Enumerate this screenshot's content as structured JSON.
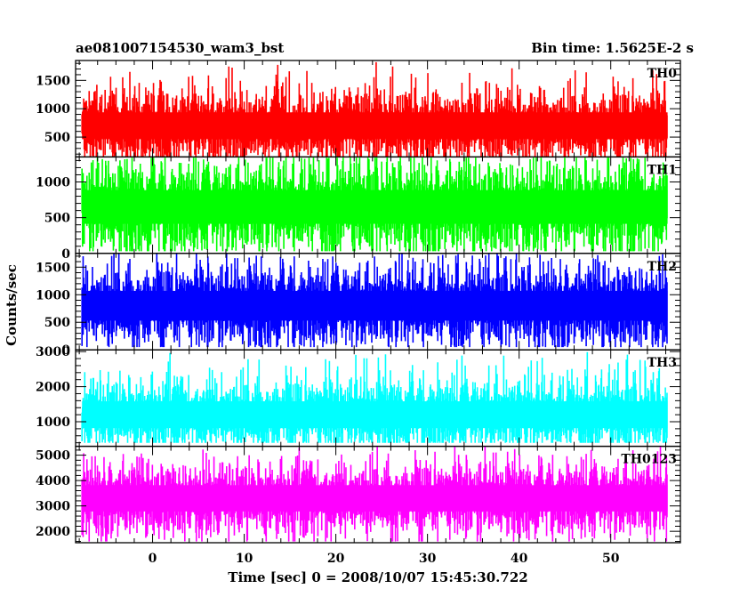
{
  "chart_data": {
    "type": "line",
    "title": "ae081007154530_wam3_bst",
    "subtitle": "Bin time: 1.5625E-2 s",
    "xlabel": "Time [sec] 0 = 2008/10/07 15:45:30.722",
    "ylabel": "Counts/sec",
    "xlim": [
      -8.4,
      57.6
    ],
    "x_ticks": [
      0,
      10,
      20,
      30,
      40,
      50
    ],
    "x_range": [
      -7.7,
      56.2
    ],
    "grid": false,
    "legend": "none",
    "panels": [
      {
        "name": "TH0",
        "color": "#ff0000",
        "ylim": [
          150,
          1850
        ],
        "y_ticks": [
          500,
          1000,
          1500
        ],
        "mean": 700,
        "typical_min": 300,
        "typical_max": 1350,
        "min": 150,
        "max": 1820
      },
      {
        "name": "TH1",
        "color": "#00ff00",
        "ylim": [
          0,
          1350
        ],
        "y_ticks": [
          0,
          500,
          1000
        ],
        "mean": 650,
        "typical_min": 150,
        "typical_max": 1200,
        "min": 30,
        "max": 1340
      },
      {
        "name": "TH2",
        "color": "#0000ff",
        "ylim": [
          0,
          1750
        ],
        "y_ticks": [
          0,
          500,
          1000,
          1500
        ],
        "mean": 800,
        "typical_min": 300,
        "typical_max": 1500,
        "min": 50,
        "max": 1740
      },
      {
        "name": "TH3",
        "color": "#00ffff",
        "ylim": [
          300,
          3050
        ],
        "y_ticks": [
          1000,
          2000,
          3000
        ],
        "mean": 1200,
        "typical_min": 700,
        "typical_max": 2400,
        "min": 400,
        "max": 3000
      },
      {
        "name": "TH0123",
        "color": "#ff00ff",
        "ylim": [
          1550,
          5350
        ],
        "y_ticks": [
          2000,
          3000,
          4000,
          5000
        ],
        "mean": 3300,
        "typical_min": 2300,
        "typical_max": 4600,
        "min": 1600,
        "max": 5340
      }
    ]
  }
}
